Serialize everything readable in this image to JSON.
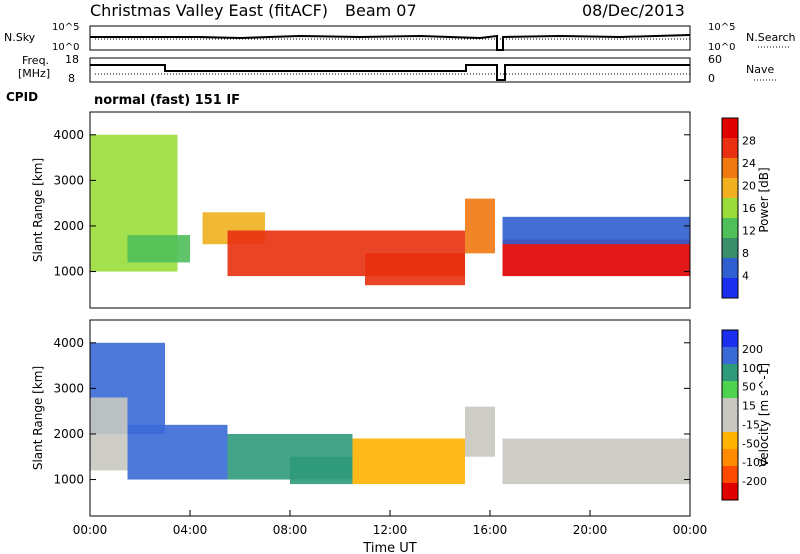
{
  "header": {
    "title": "Christmas Valley East (fitACF)",
    "beam": "Beam 07",
    "date": "08/Dec/2013"
  },
  "noise_panel": {
    "left_label": "N.Sky",
    "right_label": "N.Search",
    "left_ticks": [
      "10^5",
      "10^0"
    ],
    "right_ticks": [
      "10^5",
      "10^0"
    ]
  },
  "freq_panel": {
    "left_label_line1": "Freq.",
    "left_label_line2": "[MHz]",
    "right_label": "Nave",
    "left_ticks": [
      "18",
      "8"
    ],
    "right_ticks": [
      "60",
      "0"
    ]
  },
  "cpid": {
    "label": "CPID",
    "value": "normal (fast) 151 IF"
  },
  "colors": {
    "power_scale": [
      "#1c2ef0",
      "#2f5fd0",
      "#3a8f6a",
      "#4fbf5a",
      "#9adc3a",
      "#f0b020",
      "#f07810",
      "#e83010",
      "#e00000"
    ],
    "velocity_scale": [
      "#e00000",
      "#ff4a00",
      "#ff8c00",
      "#ffb300",
      "#c8c8c0",
      "#c8c8c0",
      "#4fd24f",
      "#2f9a7a",
      "#3a6ad6",
      "#1c2ef0"
    ],
    "ground_scatter": "#c8c8c0"
  },
  "chart_data": [
    {
      "type": "heatmap",
      "panel": "power",
      "xlabel": "",
      "ylabel": "Slant Range [km]",
      "ylim": [
        200,
        4500
      ],
      "xlim": [
        "00:00",
        "24:00"
      ],
      "y_ticks": [
        1000,
        2000,
        3000,
        4000
      ],
      "colorbar": {
        "label": "Power [dB]",
        "ticks": [
          4,
          8,
          12,
          16,
          20,
          24,
          28
        ]
      },
      "regions": [
        {
          "t0": 0.0,
          "t1": 3.5,
          "r0": 1000,
          "r1": 4000,
          "value": 16
        },
        {
          "t0": 1.5,
          "t1": 4.0,
          "r0": 1200,
          "r1": 1800,
          "value": 14
        },
        {
          "t0": 4.5,
          "t1": 7.0,
          "r0": 1600,
          "r1": 2300,
          "value": 18
        },
        {
          "t0": 5.5,
          "t1": 15.0,
          "r0": 900,
          "r1": 1900,
          "value": 26
        },
        {
          "t0": 11.0,
          "t1": 15.0,
          "r0": 700,
          "r1": 1400,
          "value": 24
        },
        {
          "t0": 15.0,
          "t1": 16.2,
          "r0": 1400,
          "r1": 2600,
          "value": 22
        },
        {
          "t0": 16.5,
          "t1": 24.0,
          "r0": 900,
          "r1": 1700,
          "value": 27
        },
        {
          "t0": 16.5,
          "t1": 24.0,
          "r0": 1600,
          "r1": 2200,
          "value": 6
        }
      ]
    },
    {
      "type": "heatmap",
      "panel": "velocity",
      "xlabel": "Time UT",
      "ylabel": "Slant Range [km]",
      "ylim": [
        200,
        4500
      ],
      "xlim": [
        "00:00",
        "24:00"
      ],
      "x_ticks": [
        "00:00",
        "04:00",
        "08:00",
        "12:00",
        "16:00",
        "20:00",
        "00:00"
      ],
      "y_ticks": [
        1000,
        2000,
        3000,
        4000
      ],
      "colorbar": {
        "label": "Velocity [m s^-1]",
        "ticks": [
          200,
          100,
          50,
          15,
          -15,
          -50,
          -100,
          -200
        ]
      },
      "regions": [
        {
          "t0": 0.0,
          "t1": 3.0,
          "r0": 2000,
          "r1": 4000,
          "value": 200
        },
        {
          "t0": 0.0,
          "t1": 1.5,
          "r0": 1200,
          "r1": 2800,
          "value": 0
        },
        {
          "t0": 1.5,
          "t1": 5.5,
          "r0": 1000,
          "r1": 2200,
          "value": 180
        },
        {
          "t0": 5.5,
          "t1": 10.5,
          "r0": 1000,
          "r1": 2000,
          "value": 60
        },
        {
          "t0": 8.0,
          "t1": 10.5,
          "r0": 900,
          "r1": 1500,
          "value": 80
        },
        {
          "t0": 10.5,
          "t1": 15.0,
          "r0": 900,
          "r1": 1900,
          "value": -40
        },
        {
          "t0": 15.0,
          "t1": 16.2,
          "r0": 1500,
          "r1": 2600,
          "value": 0
        },
        {
          "t0": 16.5,
          "t1": 24.0,
          "r0": 900,
          "r1": 1900,
          "value": 0
        }
      ]
    }
  ]
}
